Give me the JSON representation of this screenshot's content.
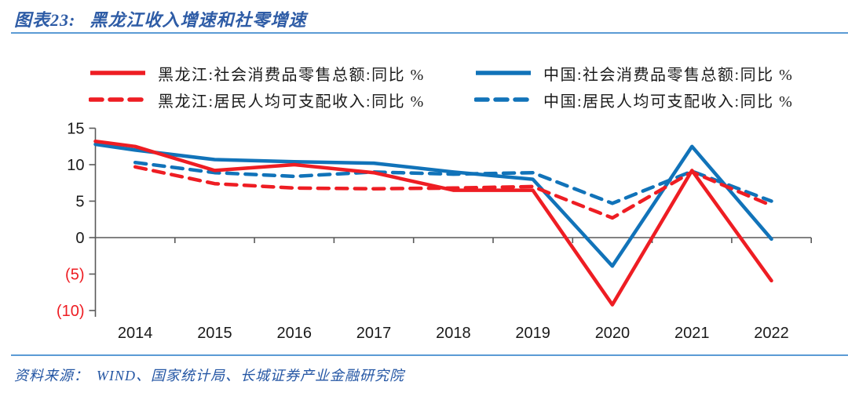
{
  "header": {
    "label": "图表23:",
    "title": "黑龙江收入增速和社零增速"
  },
  "footer": {
    "prefix": "资料来源：",
    "sources": "WIND、国家统计局、长城证券产业金融研究院"
  },
  "colors": {
    "red": "#EE1D23",
    "blue": "#1173B9",
    "title_blue": "#2E5CA6",
    "rule_blue": "#5B9BD5",
    "axis_gray": "#595959",
    "text_dark": "#1a1a1a"
  },
  "chart_data": {
    "type": "line",
    "title": "黑龙江收入增速和社零增速",
    "categories": [
      "2014",
      "2015",
      "2016",
      "2017",
      "2018",
      "2019",
      "2020",
      "2021",
      "2022"
    ],
    "series": [
      {
        "name": "黑龙江:社会消费品零售总额:同比 %",
        "color": "#EE1D23",
        "dash": false,
        "axis_start_value": 13.2,
        "values": [
          12.5,
          9.2,
          10.0,
          8.9,
          6.5,
          6.5,
          -9.2,
          9.2,
          -5.9
        ]
      },
      {
        "name": "黑龙江:居民人均可支配收入:同比 %",
        "color": "#EE1D23",
        "dash": true,
        "axis_start_value": null,
        "values": [
          9.7,
          7.4,
          6.8,
          6.7,
          6.8,
          7.0,
          2.7,
          9.0,
          4.4
        ]
      },
      {
        "name": "中国:社会消费品零售总额:同比 %",
        "color": "#1173B9",
        "dash": false,
        "axis_start_value": 12.8,
        "values": [
          12.0,
          10.7,
          10.4,
          10.2,
          9.0,
          8.0,
          -3.9,
          12.5,
          -0.2
        ]
      },
      {
        "name": "中国:居民人均可支配收入:同比 %",
        "color": "#1173B9",
        "dash": true,
        "axis_start_value": null,
        "values": [
          10.3,
          8.9,
          8.4,
          9.0,
          8.7,
          8.9,
          4.7,
          9.1,
          5.0
        ]
      }
    ],
    "ylim": [
      -10,
      15
    ],
    "yticks": [
      {
        "value": 15,
        "label": "15",
        "color": "#1a1a1a"
      },
      {
        "value": 10,
        "label": "10",
        "color": "#1a1a1a"
      },
      {
        "value": 5,
        "label": "5",
        "color": "#1a1a1a"
      },
      {
        "value": 0,
        "label": "0",
        "color": "#1a1a1a"
      },
      {
        "value": -5,
        "label": "(5)",
        "color": "#EE1D23"
      },
      {
        "value": -10,
        "label": "(10)",
        "color": "#EE1D23"
      }
    ],
    "grid": false,
    "legend_position": "top",
    "unit": "%"
  }
}
